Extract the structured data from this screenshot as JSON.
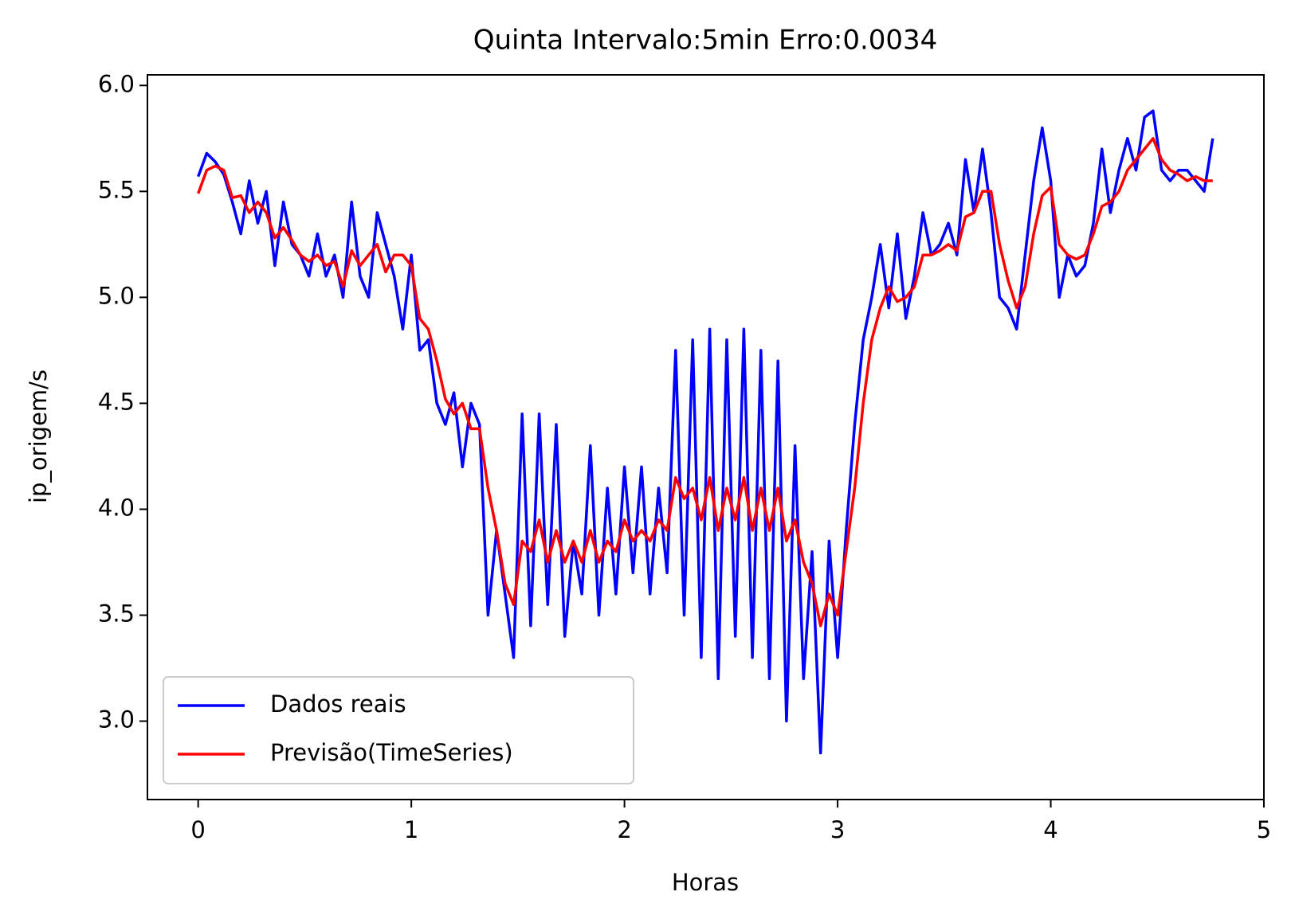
{
  "chart_data": {
    "type": "line",
    "title": "Quinta Intervalo:5min Erro:0.0034",
    "x_label": "Horas",
    "y_label": "ip_origem/s",
    "x": [
      0,
      0.04,
      0.08,
      0.12,
      0.16,
      0.2,
      0.24,
      0.28,
      0.32,
      0.36,
      0.4,
      0.44,
      0.48,
      0.52,
      0.56,
      0.6,
      0.64,
      0.68,
      0.72,
      0.76,
      0.8,
      0.84,
      0.88,
      0.92,
      0.96,
      1.0,
      1.04,
      1.08,
      1.12,
      1.16,
      1.2,
      1.24,
      1.28,
      1.32,
      1.36,
      1.4,
      1.44,
      1.48,
      1.52,
      1.56,
      1.6,
      1.64,
      1.68,
      1.72,
      1.76,
      1.8,
      1.84,
      1.88,
      1.92,
      1.96,
      2.0,
      2.04,
      2.08,
      2.12,
      2.16,
      2.2,
      2.24,
      2.28,
      2.32,
      2.36,
      2.4,
      2.44,
      2.48,
      2.52,
      2.56,
      2.6,
      2.64,
      2.68,
      2.72,
      2.76,
      2.8,
      2.84,
      2.88,
      2.92,
      2.96,
      3.0,
      3.04,
      3.08,
      3.12,
      3.16,
      3.2,
      3.24,
      3.28,
      3.32,
      3.36,
      3.4,
      3.44,
      3.48,
      3.52,
      3.56,
      3.6,
      3.64,
      3.68,
      3.72,
      3.76,
      3.8,
      3.84,
      3.88,
      3.92,
      3.96,
      4.0,
      4.04,
      4.08,
      4.12,
      4.16,
      4.2,
      4.24,
      4.28,
      4.32,
      4.36,
      4.4,
      4.44,
      4.48,
      4.52,
      4.56,
      4.6,
      4.64,
      4.68,
      4.72,
      4.76
    ],
    "series": [
      {
        "name": "Dados reais",
        "color": "#0000ff",
        "values": [
          5.57,
          5.68,
          5.64,
          5.58,
          5.45,
          5.3,
          5.55,
          5.35,
          5.5,
          5.15,
          5.45,
          5.25,
          5.2,
          5.1,
          5.3,
          5.1,
          5.2,
          5.0,
          5.45,
          5.1,
          5.0,
          5.4,
          5.25,
          5.1,
          4.85,
          5.2,
          4.75,
          4.8,
          4.5,
          4.4,
          4.55,
          4.2,
          4.5,
          4.4,
          3.5,
          3.9,
          3.6,
          3.3,
          4.45,
          3.45,
          4.45,
          3.55,
          4.4,
          3.4,
          3.85,
          3.6,
          4.3,
          3.5,
          4.1,
          3.6,
          4.2,
          3.7,
          4.2,
          3.6,
          4.1,
          3.7,
          4.75,
          3.5,
          4.8,
          3.3,
          4.85,
          3.2,
          4.8,
          3.4,
          4.85,
          3.3,
          4.75,
          3.2,
          4.7,
          3.0,
          4.3,
          3.2,
          3.8,
          2.85,
          3.85,
          3.3,
          3.9,
          4.4,
          4.8,
          5.0,
          5.25,
          4.95,
          5.3,
          4.9,
          5.1,
          5.4,
          5.2,
          5.25,
          5.35,
          5.2,
          5.65,
          5.4,
          5.7,
          5.4,
          5.0,
          4.95,
          4.85,
          5.2,
          5.55,
          5.8,
          5.55,
          5.0,
          5.2,
          5.1,
          5.15,
          5.35,
          5.7,
          5.4,
          5.6,
          5.75,
          5.6,
          5.85,
          5.88,
          5.6,
          5.55,
          5.6,
          5.6,
          5.55,
          5.5,
          5.75
        ]
      },
      {
        "name": "Previsão(TimeSeries)",
        "color": "#ff0000",
        "values": [
          5.49,
          5.6,
          5.62,
          5.6,
          5.47,
          5.48,
          5.4,
          5.45,
          5.4,
          5.28,
          5.33,
          5.27,
          5.2,
          5.17,
          5.2,
          5.15,
          5.17,
          5.05,
          5.22,
          5.15,
          5.2,
          5.25,
          5.12,
          5.2,
          5.2,
          5.15,
          4.9,
          4.85,
          4.7,
          4.52,
          4.45,
          4.5,
          4.38,
          4.38,
          4.1,
          3.9,
          3.65,
          3.55,
          3.85,
          3.8,
          3.95,
          3.75,
          3.9,
          3.75,
          3.85,
          3.75,
          3.9,
          3.75,
          3.85,
          3.8,
          3.95,
          3.85,
          3.9,
          3.85,
          3.95,
          3.9,
          4.15,
          4.05,
          4.1,
          3.95,
          4.15,
          3.9,
          4.1,
          3.95,
          4.15,
          3.9,
          4.1,
          3.9,
          4.1,
          3.85,
          3.95,
          3.75,
          3.65,
          3.45,
          3.6,
          3.5,
          3.8,
          4.1,
          4.5,
          4.8,
          4.95,
          5.05,
          4.98,
          5.0,
          5.05,
          5.2,
          5.2,
          5.22,
          5.25,
          5.22,
          5.38,
          5.4,
          5.5,
          5.5,
          5.25,
          5.08,
          4.95,
          5.05,
          5.3,
          5.48,
          5.52,
          5.25,
          5.2,
          5.18,
          5.2,
          5.3,
          5.43,
          5.45,
          5.5,
          5.6,
          5.65,
          5.7,
          5.75,
          5.65,
          5.6,
          5.58,
          5.55,
          5.57,
          5.55,
          5.55
        ]
      }
    ],
    "xlim": [
      -0.238,
      5.0
    ],
    "ylim": [
      2.63,
      6.05
    ],
    "xticks": [
      0,
      1,
      2,
      3,
      4,
      5
    ],
    "yticks": [
      {
        "value": 3.0,
        "label": "3.0"
      },
      3.5,
      {
        "value": 4.0,
        "label": "4.0"
      },
      4.5,
      {
        "value": 5.0,
        "label": "5.0"
      },
      5.5,
      {
        "value": 6.0,
        "label": "6.0"
      }
    ],
    "legend": "lower left",
    "grid": false
  }
}
